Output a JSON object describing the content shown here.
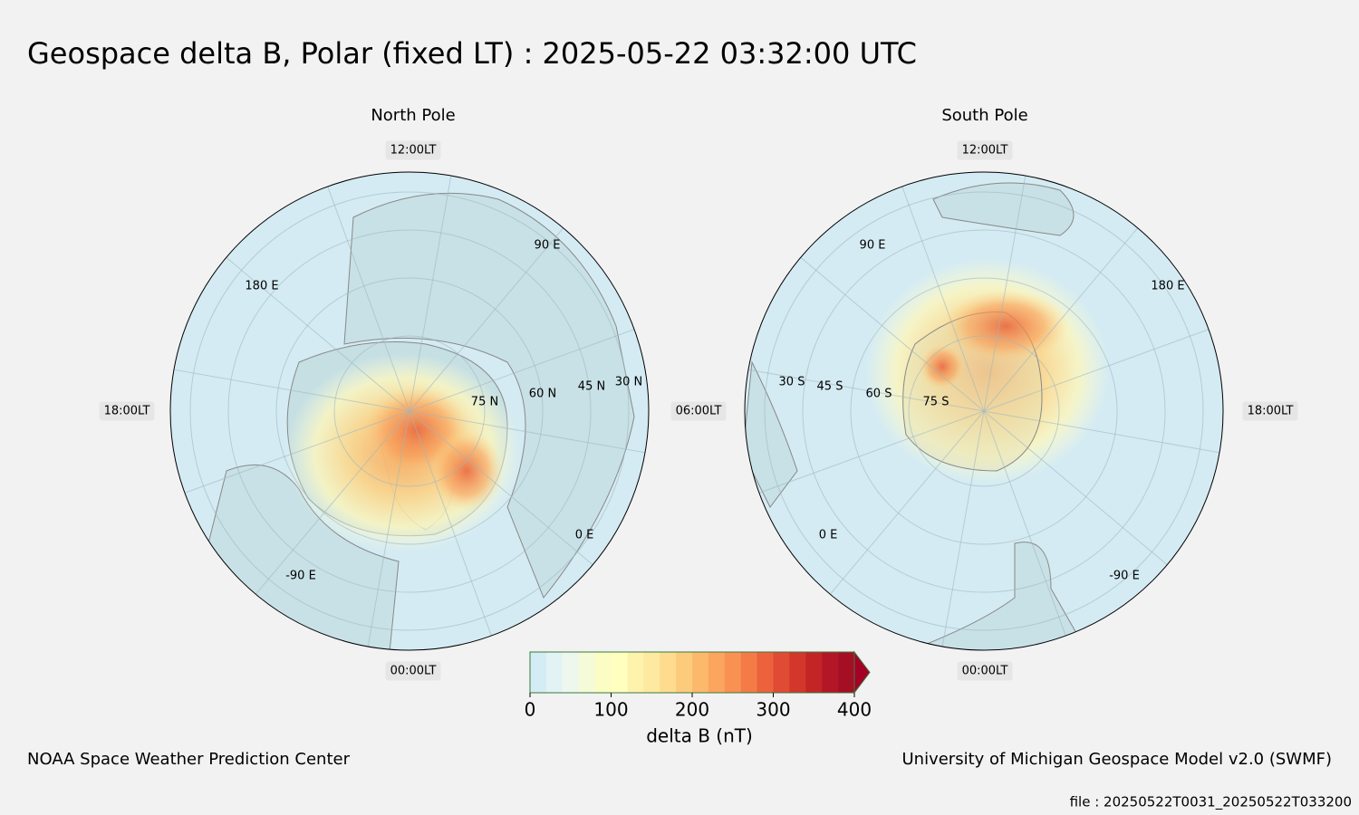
{
  "title": "Geospace delta B, Polar (fixed LT) : 2025-05-22  03:32:00 UTC",
  "panels": [
    {
      "title": "North Pole",
      "lt_labels": [
        "12:00LT",
        "18:00LT",
        "06:00LT",
        "00:00LT"
      ],
      "lon_labels": [
        "90 E",
        "180 E",
        "-90 E",
        "0 E"
      ],
      "lat_labels": [
        "75 N",
        "60 N",
        "45 N",
        "30 N"
      ]
    },
    {
      "title": "South Pole",
      "lt_labels": [
        "12:00LT",
        "18:00LT",
        "00:00LT"
      ],
      "lon_labels": [
        "90 E",
        "180 E",
        "-90 E",
        "0 E"
      ],
      "lat_labels": [
        "30 S",
        "45 S",
        "60 S",
        "75 S"
      ]
    }
  ],
  "colorbar": {
    "label": "delta B (nT)",
    "lim": [
      0,
      400
    ],
    "ticks": [
      0,
      100,
      200,
      300,
      400
    ],
    "colors": [
      "#d4ecf4",
      "#e3f3f5",
      "#eef7ee",
      "#f5fad8",
      "#fbfdc4",
      "#ffffbf",
      "#fff2ad",
      "#fee9a0",
      "#fedc8f",
      "#fdcb7c",
      "#fdb96b",
      "#fca55f",
      "#f99153",
      "#f47b48",
      "#ec623c",
      "#e04b34",
      "#d3362b",
      "#c32527",
      "#b31727",
      "#a50f26"
    ],
    "extend_color": "#a50026"
  },
  "footer": {
    "left": "NOAA Space Weather Prediction Center",
    "right": "University of Michigan Geospace Model v2.0 (SWMF)",
    "file": "file : 20250522T0031_20250522T033200"
  }
}
